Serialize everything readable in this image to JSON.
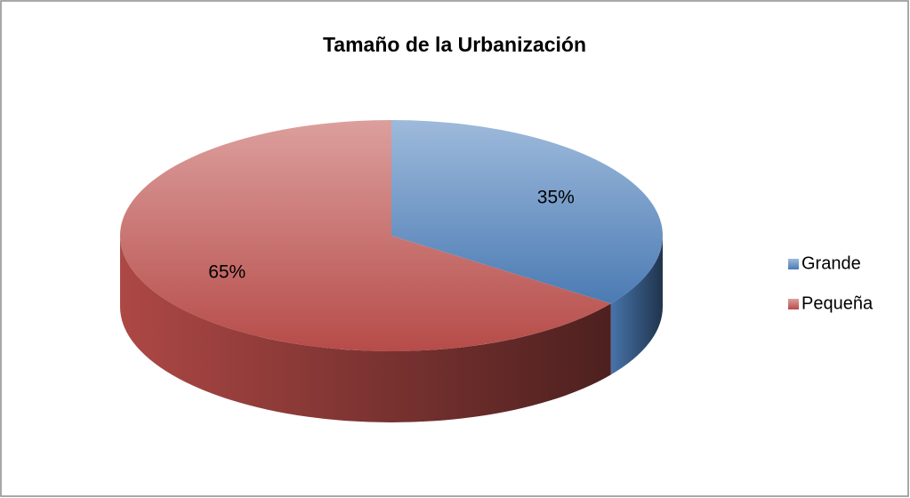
{
  "chart_data": {
    "type": "pie",
    "title": "Tamaño de la Urbanización",
    "categories": [
      "Grande",
      "Pequeña"
    ],
    "values": [
      35,
      65
    ],
    "value_labels": [
      "35%",
      "65%"
    ],
    "colors": [
      "#4f81bd",
      "#c0504d"
    ],
    "legend": "right"
  }
}
